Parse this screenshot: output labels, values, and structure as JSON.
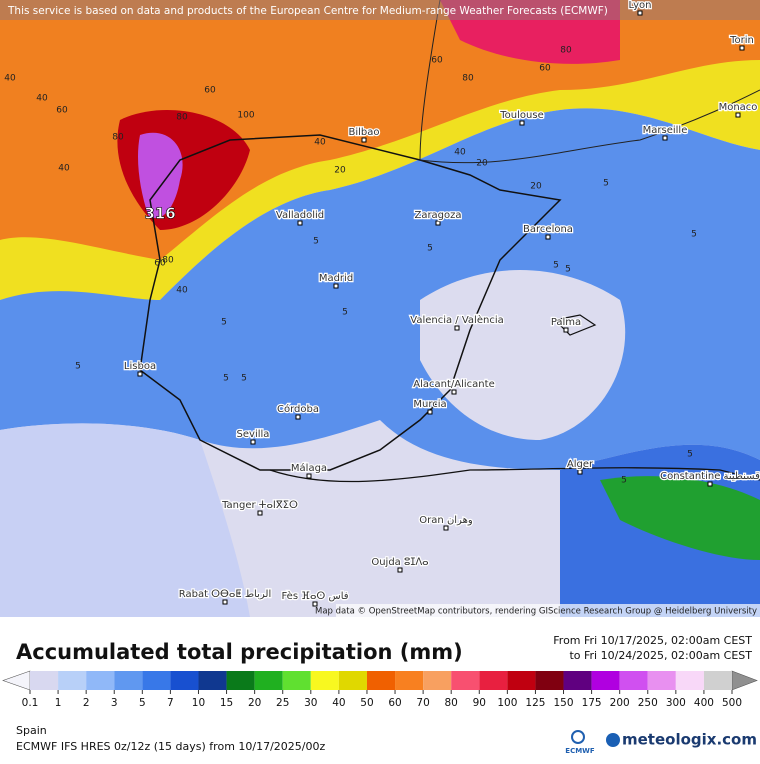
{
  "header": {
    "notice": "This service is based on data and products of the European Centre for Medium-range Weather Forecasts (ECMWF)"
  },
  "map": {
    "cities": [
      "Lyon",
      "Torin",
      "Monaco",
      "Marseille",
      "Toulouse",
      "Bilbao",
      "Valladolid",
      "Zaragoza",
      "Barcelona",
      "Madrid",
      "Valencia / València",
      "Palma",
      "Lisboa",
      "Córdoba",
      "Alacant/Alicante",
      "Murcia",
      "Sevilla",
      "Málaga",
      "Alger",
      "Constantine قسنطينة",
      "Tanger ⵜⴰⵏⴳⵉⵔ",
      "Oran وهران",
      "Oujda ⵓⵊⴷⴰ",
      "Rabat ⵔⴱⴰⵟ الرباط",
      "Fès ⴼⴰⵙ فاس"
    ],
    "contour_labels": [
      "40",
      "40",
      "40",
      "60",
      "80",
      "100",
      "80",
      "60",
      "40",
      "20",
      "60",
      "80",
      "80",
      "60",
      "40",
      "20",
      "5",
      "5",
      "5",
      "5",
      "5",
      "5",
      "5",
      "5",
      "5",
      "5",
      "5",
      "5",
      "5",
      "60",
      "80",
      "40",
      "20"
    ],
    "max_label": "316",
    "attribution": "Map data © OpenStreetMap contributors, rendering GIScience Research Group @ Heidelberg University"
  },
  "footer": {
    "title": "Accumulated total precipitation (mm)",
    "from": "From Fri 10/17/2025, 02:00am CEST",
    "to": "to Fri 10/24/2025, 02:00am CEST",
    "region": "Spain",
    "model": "ECMWF IFS HRES 0z/12z (15 days) from 10/17/2025/00z",
    "ecmwf_logo": "ECMWF",
    "brand": "meteologix.com"
  },
  "legend": {
    "ticks": [
      0.1,
      1,
      2,
      3,
      5,
      7,
      10,
      15,
      20,
      25,
      30,
      40,
      50,
      60,
      70,
      80,
      90,
      100,
      125,
      150,
      175,
      200,
      250,
      300,
      400,
      500
    ],
    "colors": [
      "#d8d8f0",
      "#b8d0f8",
      "#90b8f8",
      "#6098f0",
      "#3878e8",
      "#1850d0",
      "#103890",
      "#0a7a1a",
      "#20b020",
      "#60e030",
      "#f8f820",
      "#e0d800",
      "#f06000",
      "#f88020",
      "#f8a060",
      "#f85070",
      "#e82040",
      "#c00010",
      "#800010",
      "#600080",
      "#b000e0",
      "#d050f0",
      "#e890f0",
      "#f8d8f8",
      "#d0d0d0"
    ],
    "below_color": "#f4f4fa",
    "above_color": "#909090"
  }
}
